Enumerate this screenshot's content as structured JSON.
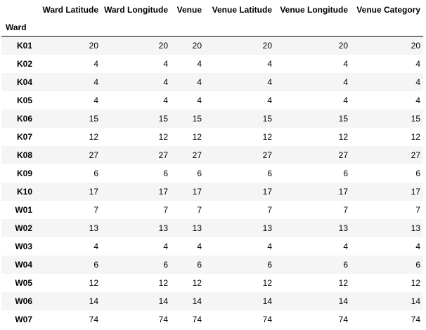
{
  "table": {
    "index_name": "Ward",
    "columns": [
      "Ward Latitude",
      "Ward Longitude",
      "Venue",
      "Venue Latitude",
      "Venue Longitude",
      "Venue Category"
    ],
    "rows": [
      {
        "ward": "K01",
        "values": [
          "20",
          "20",
          "20",
          "20",
          "20",
          "20"
        ]
      },
      {
        "ward": "K02",
        "values": [
          "4",
          "4",
          "4",
          "4",
          "4",
          "4"
        ]
      },
      {
        "ward": "K04",
        "values": [
          "4",
          "4",
          "4",
          "4",
          "4",
          "4"
        ]
      },
      {
        "ward": "K05",
        "values": [
          "4",
          "4",
          "4",
          "4",
          "4",
          "4"
        ]
      },
      {
        "ward": "K06",
        "values": [
          "15",
          "15",
          "15",
          "15",
          "15",
          "15"
        ]
      },
      {
        "ward": "K07",
        "values": [
          "12",
          "12",
          "12",
          "12",
          "12",
          "12"
        ]
      },
      {
        "ward": "K08",
        "values": [
          "27",
          "27",
          "27",
          "27",
          "27",
          "27"
        ]
      },
      {
        "ward": "K09",
        "values": [
          "6",
          "6",
          "6",
          "6",
          "6",
          "6"
        ]
      },
      {
        "ward": "K10",
        "values": [
          "17",
          "17",
          "17",
          "17",
          "17",
          "17"
        ]
      },
      {
        "ward": "W01",
        "values": [
          "7",
          "7",
          "7",
          "7",
          "7",
          "7"
        ]
      },
      {
        "ward": "W02",
        "values": [
          "13",
          "13",
          "13",
          "13",
          "13",
          "13"
        ]
      },
      {
        "ward": "W03",
        "values": [
          "4",
          "4",
          "4",
          "4",
          "4",
          "4"
        ]
      },
      {
        "ward": "W04",
        "values": [
          "6",
          "6",
          "6",
          "6",
          "6",
          "6"
        ]
      },
      {
        "ward": "W05",
        "values": [
          "12",
          "12",
          "12",
          "12",
          "12",
          "12"
        ]
      },
      {
        "ward": "W06",
        "values": [
          "14",
          "14",
          "14",
          "14",
          "14",
          "14"
        ]
      },
      {
        "ward": "W07",
        "values": [
          "74",
          "74",
          "74",
          "74",
          "74",
          "74"
        ]
      }
    ]
  },
  "colors": {
    "stripe": "#f5f5f5",
    "background": "#ffffff",
    "text": "#000000"
  }
}
